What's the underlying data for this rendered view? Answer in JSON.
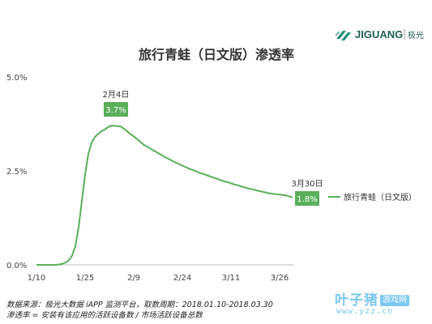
{
  "brand": {
    "logo_text": "JIGUANG",
    "logo_sub": "极光",
    "colors": {
      "accent": "#5aaf5a",
      "logo": "#1f8f7a"
    }
  },
  "chart_data": {
    "type": "line",
    "title": "旅行青蛙（日文版）渗透率",
    "xlabel": "",
    "ylabel": "",
    "x_ticks": [
      "1/10",
      "1/25",
      "2/9",
      "2/24",
      "3/11",
      "3/26"
    ],
    "y_ticks": [
      "0.0%",
      "2.5%",
      "5.0%"
    ],
    "ylim": [
      0,
      5
    ],
    "x_range": [
      "1/10",
      "3/30"
    ],
    "grid": false,
    "legend_position": "right",
    "series": [
      {
        "name": "旅行青蛙（日文版）",
        "color": "#5aaf5a",
        "x": [
          0,
          1,
          2,
          3,
          4,
          5,
          6,
          7,
          8,
          9,
          10,
          11,
          12,
          13,
          14,
          15,
          16,
          17,
          18,
          19,
          20,
          21,
          22,
          23,
          24,
          25,
          26,
          27,
          28,
          29,
          30,
          31,
          32,
          33,
          34,
          35,
          36,
          37,
          38,
          39,
          40,
          41,
          42,
          43,
          44,
          45,
          46,
          47,
          48,
          49,
          50,
          51,
          52,
          53,
          54,
          55,
          56,
          57,
          58,
          59,
          60,
          61,
          62,
          63,
          64,
          65,
          66,
          67,
          68,
          69,
          70,
          71,
          72,
          73,
          74,
          75,
          76,
          77,
          78,
          79
        ],
        "values": [
          0.0,
          0.0,
          0.0,
          0.0,
          0.0,
          0.0,
          0.0,
          0.01,
          0.03,
          0.06,
          0.12,
          0.25,
          0.5,
          1.0,
          1.7,
          2.4,
          2.95,
          3.25,
          3.4,
          3.48,
          3.55,
          3.6,
          3.66,
          3.7,
          3.7,
          3.69,
          3.68,
          3.62,
          3.55,
          3.48,
          3.42,
          3.35,
          3.28,
          3.2,
          3.15,
          3.1,
          3.05,
          3.0,
          2.95,
          2.9,
          2.85,
          2.81,
          2.76,
          2.72,
          2.68,
          2.64,
          2.6,
          2.56,
          2.53,
          2.5,
          2.46,
          2.43,
          2.4,
          2.37,
          2.34,
          2.31,
          2.28,
          2.25,
          2.22,
          2.2,
          2.17,
          2.14,
          2.12,
          2.09,
          2.07,
          2.04,
          2.02,
          2.0,
          1.98,
          1.96,
          1.94,
          1.92,
          1.9,
          1.89,
          1.88,
          1.87,
          1.86,
          1.85,
          1.82,
          1.8
        ]
      }
    ],
    "annotations": [
      {
        "x": 23,
        "date": "2月4日",
        "value_label": "3.7%",
        "y": 3.7
      },
      {
        "x": 79,
        "date": "3月30日",
        "value_label": "1.8%",
        "y": 1.8
      }
    ]
  },
  "footer": {
    "line1": "数据来源：极光大数据 iAPP 监测平台，取数周期：2018.01.10-2018.03.30",
    "line2": "渗透率 = 安装有该应用的活跃设备数 / 市场活跃设备总数"
  },
  "watermark": {
    "brand": "叶子猪",
    "tag": "游戏网",
    "url": "www.yzz.cn"
  }
}
